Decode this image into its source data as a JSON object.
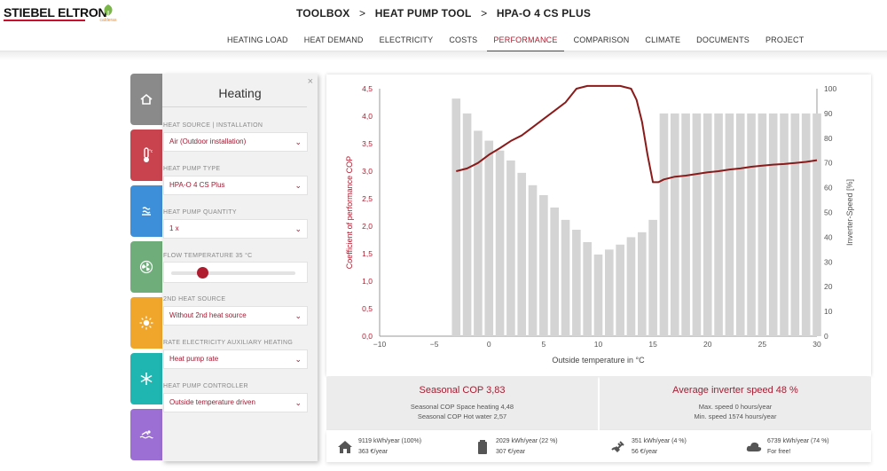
{
  "header": {
    "brand": "STIEBEL ELTRON",
    "eco_brand": "calderas",
    "breadcrumbs": [
      "TOOLBOX",
      "HEAT PUMP TOOL",
      "HPA-O 4 CS PLUS"
    ],
    "separator": ">"
  },
  "nav": {
    "items": [
      "HEATING LOAD",
      "HEAT DEMAND",
      "ELECTRICITY",
      "COSTS",
      "PERFORMANCE",
      "COMPARISON",
      "CLIMATE",
      "DOCUMENTS",
      "PROJECT"
    ],
    "active": "PERFORMANCE"
  },
  "tabs": [
    {
      "icon": "house-icon",
      "color": "#8a8a8a"
    },
    {
      "icon": "thermometer-icon",
      "color": "#c8434e"
    },
    {
      "icon": "water-icon",
      "color": "#3e8fd9"
    },
    {
      "icon": "fan-icon",
      "color": "#6fae7a"
    },
    {
      "icon": "sun-icon",
      "color": "#f0a62a"
    },
    {
      "icon": "snowflake-icon",
      "color": "#1fb5b0"
    },
    {
      "icon": "pool-icon",
      "color": "#9b6fd3"
    }
  ],
  "panel": {
    "title": "Heating",
    "close": "×",
    "fields": [
      {
        "label": "HEAT SOURCE | INSTALLATION",
        "value": "Air (Outdoor installation)"
      },
      {
        "label": "HEAT PUMP TYPE",
        "value": "HPA-O 4 CS Plus"
      },
      {
        "label": "HEAT PUMP QUANTITY",
        "value": "1 x"
      },
      {
        "label": "2ND HEAT SOURCE",
        "value": "Without 2nd heat source"
      },
      {
        "label": "RATE ELECTRICITY AUXILIARY HEATING",
        "value": "Heat pump rate"
      },
      {
        "label": "HEAT PUMP CONTROLLER",
        "value": "Outside temperature driven"
      }
    ],
    "flow_temperature": {
      "label": "FLOW TEMPERATURE 35 °C",
      "slider_fraction": 0.25
    }
  },
  "summary": {
    "cop": {
      "title": "Seasonal COP 3,83",
      "line1": "Seasonal COP Space heating 4,48",
      "line2": "Seasonal COP Hot water 2,57"
    },
    "inverter": {
      "title": "Average inverter speed 48 %",
      "line1": "Max. speed 0 hours/year",
      "line2": "Min. speed 1574 hours/year"
    }
  },
  "energy": [
    {
      "icon": "house-icon",
      "line1": "9119 kWh/year (100%)",
      "line2": "363 €/year"
    },
    {
      "icon": "battery-icon",
      "line1": "2029 kWh/year (22 %)",
      "line2": "307 €/year"
    },
    {
      "icon": "plug-icon",
      "line1": "351 kWh/year (4 %)",
      "line2": "56 €/year"
    },
    {
      "icon": "cloud-icon",
      "line1": "6739 kWh/year (74 %)",
      "line2": "For free!"
    }
  ],
  "chart_data": {
    "type": "bar",
    "xlabel": "Outside temperature in °C",
    "ylabel": "Coefficient of performance COP",
    "y2label": "Inverter-Speed [%]",
    "xlim": [
      -10,
      30
    ],
    "ylim": [
      0,
      4.5
    ],
    "y2lim": [
      0,
      100
    ],
    "x_ticks": [
      "−10",
      "−5",
      "0",
      "5",
      "10",
      "15",
      "20",
      "25",
      "30"
    ],
    "y_ticks": [
      "0,0",
      "0,5",
      "1,0",
      "1,5",
      "2,0",
      "2,5",
      "3,0",
      "3,5",
      "4,0",
      "4,5"
    ],
    "y2_ticks": [
      "0",
      "10",
      "20",
      "30",
      "40",
      "50",
      "60",
      "70",
      "80",
      "90",
      "100"
    ],
    "colors": {
      "bars": "#d4d4d4",
      "cop_line": "#8b1a1a",
      "cop_axis": "#b01c2e"
    },
    "series": [
      {
        "name": "Inverter-Speed [%]",
        "axis": "right",
        "x": [
          -3,
          -2,
          -1,
          0,
          1,
          2,
          3,
          4,
          5,
          6,
          7,
          8,
          9,
          10,
          11,
          12,
          13,
          14,
          15,
          16,
          17,
          18,
          19,
          20,
          21,
          22,
          23,
          24,
          25,
          26,
          27,
          28,
          29,
          30
        ],
        "values": [
          96,
          90,
          83,
          79,
          75,
          71,
          66,
          61,
          57,
          52,
          47,
          43,
          38,
          33,
          35,
          37,
          40,
          42,
          47,
          90,
          90,
          90,
          90,
          90,
          90,
          90,
          90,
          90,
          90,
          90,
          90,
          90,
          90,
          90
        ]
      },
      {
        "name": "COP",
        "axis": "left",
        "x": [
          -3,
          -2,
          -1,
          0,
          1,
          2,
          3,
          4,
          5,
          6,
          7,
          8,
          9,
          10,
          11,
          12,
          13,
          13.5,
          14,
          14.5,
          15,
          15.5,
          16,
          17,
          18,
          19,
          20,
          21,
          22,
          23,
          24,
          25,
          26,
          27,
          28,
          29,
          30
        ],
        "values": [
          3.0,
          3.05,
          3.15,
          3.3,
          3.42,
          3.55,
          3.65,
          3.8,
          3.95,
          4.1,
          4.25,
          4.5,
          4.55,
          4.55,
          4.55,
          4.55,
          4.5,
          4.3,
          3.9,
          3.3,
          2.8,
          2.8,
          2.85,
          2.9,
          2.92,
          2.95,
          2.98,
          3.0,
          3.03,
          3.05,
          3.08,
          3.1,
          3.12,
          3.13,
          3.15,
          3.17,
          3.2
        ]
      }
    ]
  }
}
